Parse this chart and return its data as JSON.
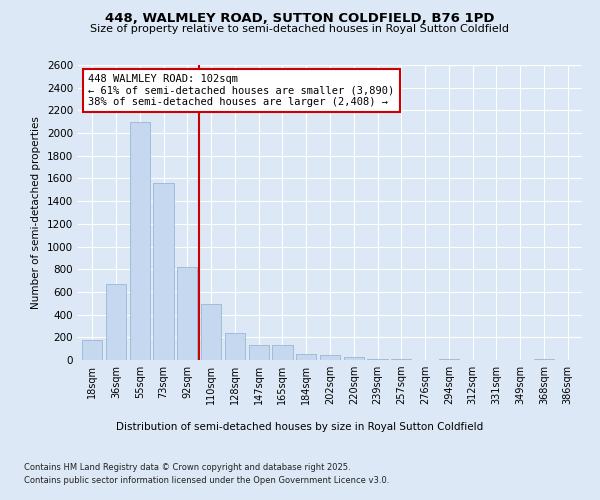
{
  "title1": "448, WALMLEY ROAD, SUTTON COLDFIELD, B76 1PD",
  "title2": "Size of property relative to semi-detached houses in Royal Sutton Coldfield",
  "xlabel": "Distribution of semi-detached houses by size in Royal Sutton Coldfield",
  "ylabel": "Number of semi-detached properties",
  "categories": [
    "18sqm",
    "36sqm",
    "55sqm",
    "73sqm",
    "92sqm",
    "110sqm",
    "128sqm",
    "147sqm",
    "165sqm",
    "184sqm",
    "202sqm",
    "220sqm",
    "239sqm",
    "257sqm",
    "276sqm",
    "294sqm",
    "312sqm",
    "331sqm",
    "349sqm",
    "368sqm",
    "386sqm"
  ],
  "values": [
    175,
    670,
    2100,
    1560,
    820,
    490,
    240,
    130,
    130,
    55,
    40,
    30,
    10,
    5,
    0,
    5,
    0,
    0,
    0,
    10,
    0
  ],
  "bar_color": "#c5d8f0",
  "bar_edge_color": "#a0bcd8",
  "vline_color": "#cc0000",
  "annotation_text": "448 WALMLEY ROAD: 102sqm\n← 61% of semi-detached houses are smaller (3,890)\n38% of semi-detached houses are larger (2,408) →",
  "ylim": [
    0,
    2600
  ],
  "yticks": [
    0,
    200,
    400,
    600,
    800,
    1000,
    1200,
    1400,
    1600,
    1800,
    2000,
    2200,
    2400,
    2600
  ],
  "footnote1": "Contains HM Land Registry data © Crown copyright and database right 2025.",
  "footnote2": "Contains public sector information licensed under the Open Government Licence v3.0.",
  "background_color": "#dce8f5",
  "plot_bg_color": "#dce8f5"
}
